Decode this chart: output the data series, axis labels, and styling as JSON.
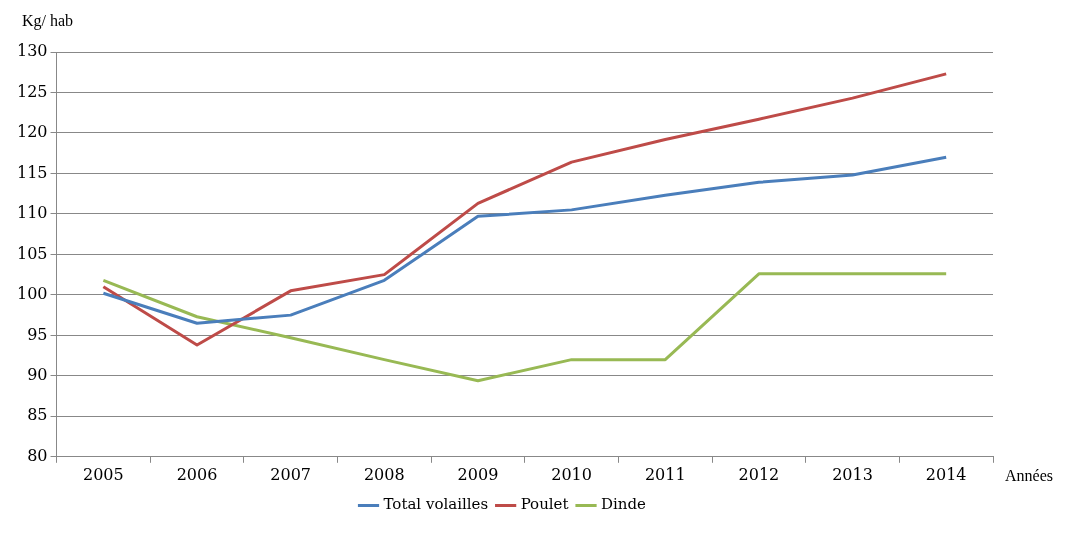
{
  "chart_data": {
    "type": "line",
    "xlabel": "Années",
    "ylabel": "Kg/ hab",
    "categories": [
      "2005",
      "2006",
      "2007",
      "2008",
      "2009",
      "2010",
      "2011",
      "2012",
      "2013",
      "2014"
    ],
    "series": [
      {
        "name": "Total volailles",
        "color": "#4a7ebb",
        "values": [
          100.2,
          96.5,
          97.5,
          101.8,
          109.7,
          110.5,
          112.3,
          113.9,
          114.8,
          117
        ]
      },
      {
        "name": "Poulet",
        "color": "#be4b48",
        "values": [
          101,
          93.8,
          100.5,
          102.5,
          111.3,
          116.4,
          119.2,
          121.7,
          124.3,
          127.3
        ]
      },
      {
        "name": "Dinde",
        "color": "#98b954",
        "values": [
          101.8,
          97.3,
          94.7,
          92,
          89.4,
          92,
          92,
          102.6,
          102.6,
          102.6
        ]
      }
    ],
    "ylim": [
      80,
      130
    ],
    "yticks": [
      80,
      85,
      90,
      95,
      100,
      105,
      110,
      115,
      120,
      125,
      130
    ],
    "grid": "y",
    "legend": "bottom",
    "marker": "none",
    "line_style": "solid"
  }
}
